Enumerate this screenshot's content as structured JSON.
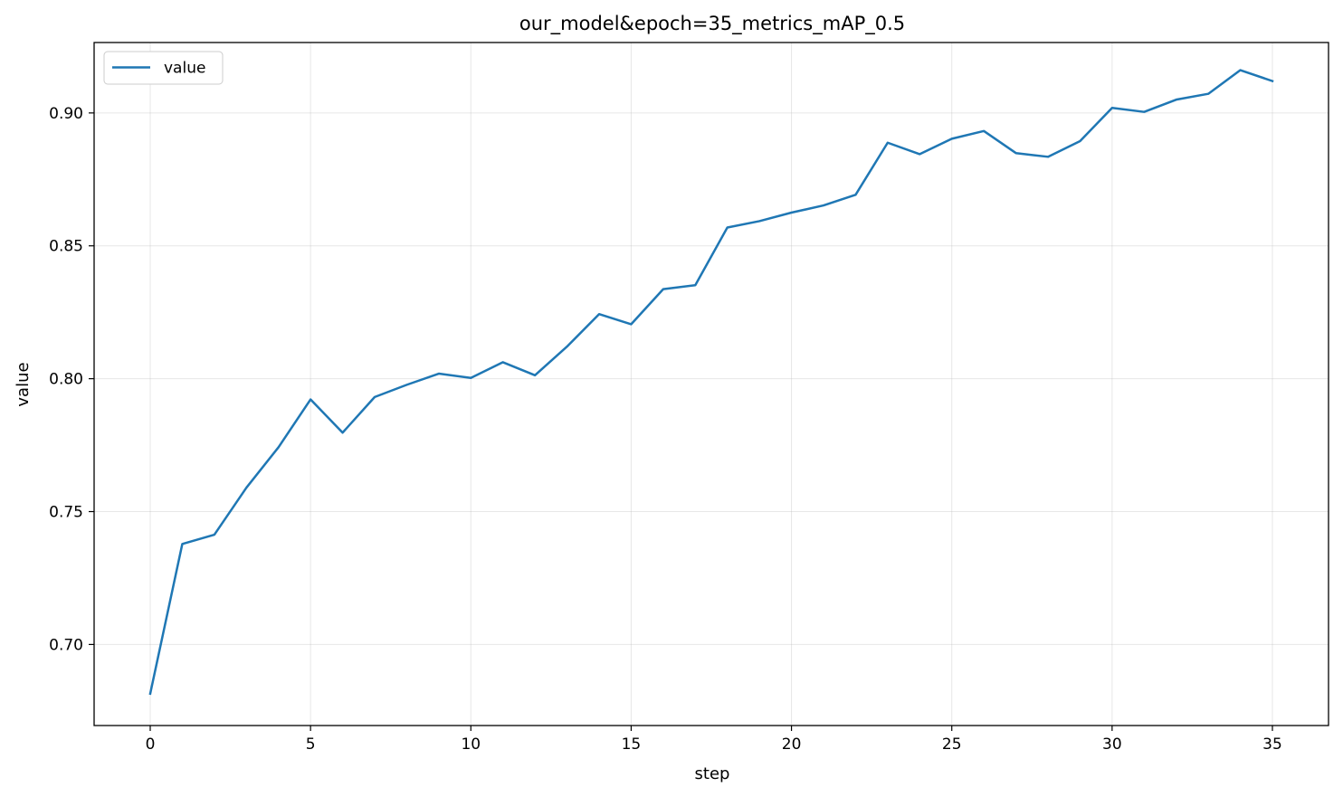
{
  "chart_data": {
    "type": "line",
    "title": "our_model&epoch=35_metrics_mAP_0.5",
    "xlabel": "step",
    "ylabel": "value",
    "xlim": [
      -1.75,
      36.75
    ],
    "ylim": [
      0.6695,
      0.9265
    ],
    "xticks": [
      0,
      5,
      10,
      15,
      20,
      25,
      30,
      35
    ],
    "yticks": [
      0.7,
      0.75,
      0.8,
      0.85,
      0.9
    ],
    "grid": true,
    "legend_position": "top-left",
    "series": [
      {
        "name": "value",
        "color": "#1f77b4",
        "x": [
          0,
          1,
          2,
          3,
          4,
          5,
          6,
          7,
          8,
          9,
          10,
          11,
          12,
          13,
          14,
          15,
          16,
          17,
          18,
          19,
          20,
          21,
          22,
          23,
          24,
          25,
          26,
          27,
          28,
          29,
          30,
          31,
          32,
          33,
          34,
          35
        ],
        "values": [
          0.6815,
          0.7378,
          0.7413,
          0.759,
          0.7742,
          0.7922,
          0.7797,
          0.7931,
          0.7977,
          0.8019,
          0.8003,
          0.8062,
          0.8013,
          0.8121,
          0.8243,
          0.8205,
          0.8337,
          0.8352,
          0.8569,
          0.8593,
          0.8625,
          0.8652,
          0.8692,
          0.8888,
          0.8845,
          0.8903,
          0.8932,
          0.8849,
          0.8835,
          0.8894,
          0.9019,
          0.9004,
          0.905,
          0.9072,
          0.9161,
          0.912
        ]
      }
    ]
  }
}
